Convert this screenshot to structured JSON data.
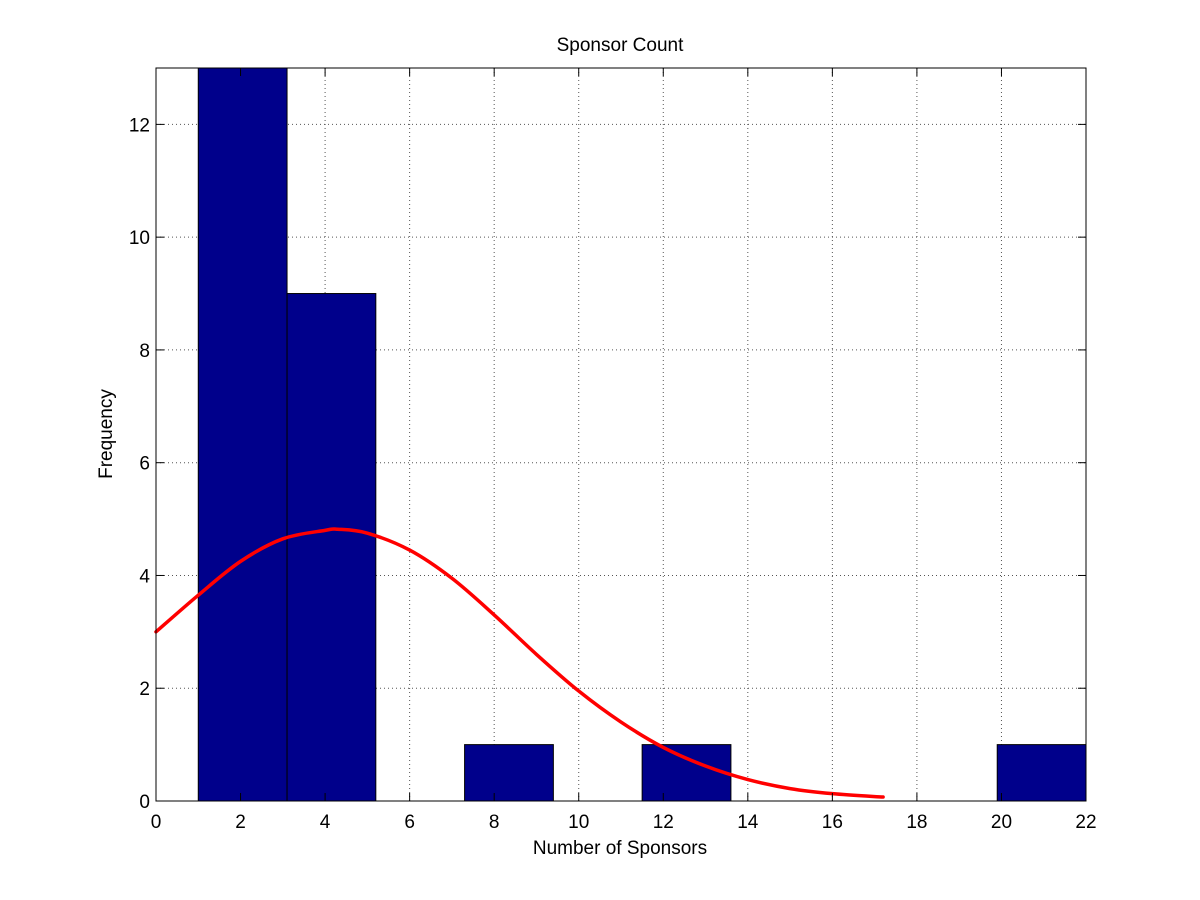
{
  "chart_data": {
    "type": "bar",
    "title": "Sponsor Count",
    "xlabel": "Number of Sponsors",
    "ylabel": "Frequency",
    "xlim": [
      0,
      22
    ],
    "ylim": [
      0,
      13
    ],
    "xticks": [
      0,
      2,
      4,
      6,
      8,
      10,
      12,
      14,
      16,
      18,
      20,
      22
    ],
    "yticks": [
      0,
      2,
      4,
      6,
      8,
      10,
      12
    ],
    "grid": true,
    "bins": [
      {
        "x0": 1.0,
        "x1": 3.1,
        "value": 13
      },
      {
        "x0": 3.1,
        "x1": 5.2,
        "value": 9
      },
      {
        "x0": 5.2,
        "x1": 7.3,
        "value": 0
      },
      {
        "x0": 7.3,
        "x1": 9.4,
        "value": 1
      },
      {
        "x0": 9.4,
        "x1": 11.5,
        "value": 0
      },
      {
        "x0": 11.5,
        "x1": 13.6,
        "value": 1
      },
      {
        "x0": 13.6,
        "x1": 15.7,
        "value": 0
      },
      {
        "x0": 15.7,
        "x1": 17.8,
        "value": 0
      },
      {
        "x0": 17.8,
        "x1": 19.9,
        "value": 0
      },
      {
        "x0": 19.9,
        "x1": 22.0,
        "value": 1
      }
    ],
    "fit_curve": {
      "x": [
        0,
        1,
        2,
        3,
        4,
        4.3,
        5,
        6,
        7,
        8,
        9,
        10,
        11,
        12,
        13,
        14,
        15,
        16,
        17.2
      ],
      "y": [
        3.0,
        3.65,
        4.25,
        4.65,
        4.8,
        4.82,
        4.75,
        4.45,
        3.95,
        3.3,
        2.6,
        1.95,
        1.4,
        0.95,
        0.62,
        0.38,
        0.22,
        0.13,
        0.07
      ]
    },
    "colors": {
      "bar_fill": "#00008b",
      "bar_edge": "#000000",
      "curve": "#ff0000",
      "grid": "#555555"
    }
  }
}
